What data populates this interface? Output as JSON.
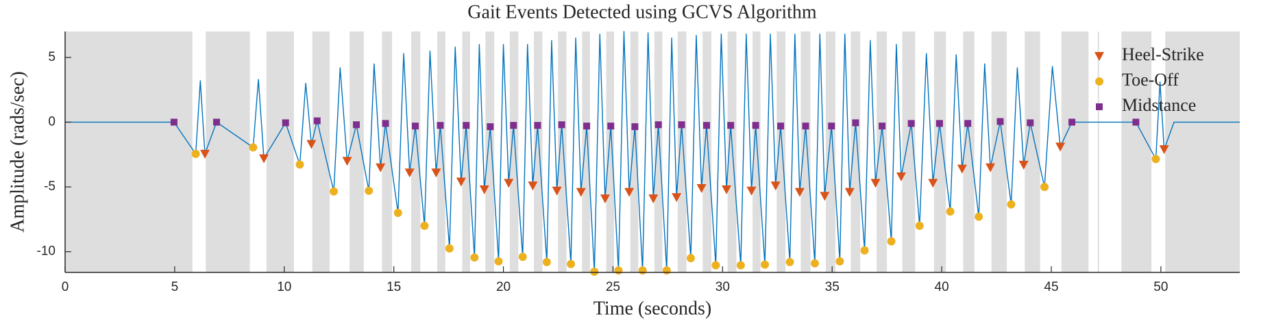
{
  "chart_data": {
    "type": "line",
    "title": "Gait Events Detected using GCVS Algorithm",
    "x_label": "Time (seconds)",
    "y_label": "Amplitude (rads/sec)",
    "xlim": [
      0,
      53.6
    ],
    "ylim": [
      -11.6,
      7
    ],
    "xticks": [
      0,
      5,
      10,
      15,
      20,
      25,
      30,
      35,
      40,
      45,
      50
    ],
    "yticks": [
      -10,
      -5,
      0,
      5
    ],
    "grid": false,
    "legend_position": "upper-right",
    "shade_color": "#dedede",
    "shaded_intervals": [
      [
        0,
        5.81
      ],
      [
        6.42,
        8.43
      ],
      [
        9.19,
        10.44
      ],
      [
        11.28,
        12.07
      ],
      [
        12.98,
        13.63
      ],
      [
        14.46,
        14.92
      ],
      [
        15.79,
        16.21
      ],
      [
        16.98,
        17.35
      ],
      [
        18.12,
        18.48
      ],
      [
        19.18,
        19.58
      ],
      [
        20.29,
        20.68
      ],
      [
        21.39,
        21.78
      ],
      [
        22.49,
        22.88
      ],
      [
        23.59,
        23.95
      ],
      [
        24.69,
        25.05
      ],
      [
        25.79,
        26.15
      ],
      [
        26.89,
        27.25
      ],
      [
        27.95,
        28.35
      ],
      [
        29.09,
        29.49
      ],
      [
        30.23,
        30.63
      ],
      [
        31.37,
        31.73
      ],
      [
        32.47,
        32.87
      ],
      [
        33.57,
        34.01
      ],
      [
        34.71,
        35.15
      ],
      [
        35.85,
        36.28
      ],
      [
        37.03,
        37.5
      ],
      [
        38.2,
        38.79
      ],
      [
        39.65,
        40.19
      ],
      [
        40.98,
        41.49
      ],
      [
        42.27,
        42.97
      ],
      [
        43.79,
        44.49
      ],
      [
        45.46,
        46.7
      ],
      [
        47.12,
        47.18
      ],
      [
        48.2,
        49.57
      ],
      [
        50.2,
        53.6
      ]
    ],
    "series": [
      {
        "type": "line",
        "color": "#0072BD",
        "x": [
          0,
          4.97,
          5.96,
          6.17,
          6.38,
          6.91,
          8.58,
          8.82,
          9.07,
          10.06,
          10.71,
          10.98,
          11.24,
          11.5,
          12.26,
          12.55,
          12.87,
          13.29,
          13.86,
          14.1,
          14.39,
          14.62,
          15.19,
          15.45,
          15.72,
          15.98,
          16.4,
          16.65,
          16.93,
          17.12,
          17.54,
          17.8,
          18.07,
          18.3,
          18.68,
          18.9,
          19.13,
          19.4,
          19.78,
          20.0,
          20.24,
          20.46,
          20.88,
          21.1,
          21.34,
          21.56,
          21.98,
          22.2,
          22.44,
          22.66,
          23.08,
          23.3,
          23.54,
          23.8,
          24.15,
          24.4,
          24.64,
          24.9,
          25.25,
          25.5,
          25.74,
          26.0,
          26.35,
          26.6,
          26.84,
          27.07,
          27.45,
          27.68,
          27.9,
          28.13,
          28.55,
          28.8,
          29.04,
          29.27,
          29.69,
          29.94,
          30.18,
          30.37,
          30.83,
          31.08,
          31.32,
          31.51,
          31.93,
          32.18,
          32.42,
          32.65,
          33.07,
          33.3,
          33.52,
          33.79,
          34.21,
          34.44,
          34.66,
          34.97,
          35.35,
          35.58,
          35.8,
          36.07,
          36.48,
          36.74,
          36.98,
          37.28,
          37.7,
          37.93,
          38.15,
          38.61,
          38.99,
          39.3,
          39.6,
          39.9,
          40.39,
          40.66,
          40.93,
          41.19,
          41.69,
          41.96,
          42.22,
          42.67,
          43.17,
          43.45,
          43.74,
          44.04,
          44.69,
          45.05,
          45.41,
          45.94,
          48.86,
          49.77,
          49.96,
          50.15,
          50.6,
          53.6
        ],
        "y": [
          0,
          0,
          -2.45,
          3.2,
          -2.45,
          0,
          -1.95,
          3.3,
          -2.8,
          -0.05,
          -3.27,
          3.0,
          -1.7,
          0.1,
          -5.35,
          4.2,
          -3.0,
          -0.2,
          -5.3,
          4.5,
          -3.5,
          -0.1,
          -7.0,
          5.3,
          -3.9,
          -0.3,
          -8.0,
          5.5,
          -3.9,
          -0.25,
          -9.75,
          5.8,
          -4.6,
          -0.25,
          -10.45,
          6.0,
          -5.2,
          -0.35,
          -10.75,
          6.0,
          -4.7,
          -0.25,
          -10.4,
          6.0,
          -4.9,
          -0.25,
          -10.8,
          6.3,
          -5.3,
          -0.2,
          -10.95,
          6.5,
          -5.4,
          -0.3,
          -11.55,
          6.8,
          -5.9,
          -0.3,
          -11.45,
          7.0,
          -5.4,
          -0.35,
          -11.45,
          6.9,
          -5.9,
          -0.2,
          -11.45,
          6.5,
          -5.8,
          -0.2,
          -10.5,
          6.7,
          -5.1,
          -0.25,
          -11.05,
          6.8,
          -5.2,
          -0.25,
          -11.05,
          6.8,
          -5.3,
          -0.25,
          -11.0,
          6.8,
          -4.9,
          -0.3,
          -10.8,
          6.8,
          -5.4,
          -0.3,
          -10.9,
          6.8,
          -5.7,
          -0.3,
          -10.75,
          6.8,
          -5.4,
          -0.05,
          -9.9,
          6.3,
          -4.7,
          -0.3,
          -9.2,
          6.0,
          -4.2,
          -0.1,
          -8.0,
          5.3,
          -4.7,
          -0.1,
          -6.9,
          5.2,
          -3.6,
          -0.1,
          -7.3,
          4.5,
          -3.5,
          0.05,
          -6.35,
          4.2,
          -3.3,
          -0.05,
          -5.0,
          4.3,
          -1.9,
          0,
          0,
          -2.85,
          3.1,
          -2.1,
          0,
          0
        ]
      },
      {
        "type": "scatter",
        "name": "Heel-Strike",
        "marker": "triangle-down",
        "color": "#D95319",
        "x": [
          6.38,
          9.07,
          11.24,
          12.87,
          14.39,
          15.72,
          16.93,
          18.07,
          19.13,
          20.24,
          21.34,
          22.44,
          23.54,
          24.64,
          25.74,
          26.84,
          27.9,
          29.04,
          30.18,
          31.32,
          32.42,
          33.52,
          34.66,
          35.8,
          36.98,
          38.15,
          39.6,
          40.93,
          42.22,
          43.74,
          45.41,
          50.15
        ],
        "y": [
          -2.45,
          -2.8,
          -1.7,
          -3.0,
          -3.5,
          -3.9,
          -3.9,
          -4.6,
          -5.2,
          -4.7,
          -4.9,
          -5.3,
          -5.4,
          -5.9,
          -5.4,
          -5.9,
          -5.8,
          -5.1,
          -5.2,
          -5.3,
          -4.9,
          -5.4,
          -5.7,
          -5.4,
          -4.7,
          -4.2,
          -4.7,
          -3.6,
          -3.5,
          -3.3,
          -1.9,
          -2.1
        ]
      },
      {
        "type": "scatter",
        "name": "Toe-Off",
        "marker": "circle",
        "color": "#EDB120",
        "x": [
          5.96,
          8.58,
          10.71,
          12.26,
          13.86,
          15.19,
          16.4,
          17.54,
          18.68,
          19.78,
          20.88,
          21.98,
          23.08,
          24.15,
          25.25,
          26.35,
          27.45,
          28.55,
          29.69,
          30.83,
          31.93,
          33.07,
          34.21,
          35.35,
          36.48,
          37.7,
          38.99,
          40.39,
          41.69,
          43.17,
          44.69,
          49.77
        ],
        "y": [
          -2.45,
          -1.95,
          -3.27,
          -5.35,
          -5.3,
          -7.0,
          -8.0,
          -9.75,
          -10.45,
          -10.75,
          -10.4,
          -10.8,
          -10.95,
          -11.55,
          -11.45,
          -11.45,
          -11.45,
          -10.5,
          -11.05,
          -11.05,
          -11.0,
          -10.8,
          -10.9,
          -10.75,
          -9.9,
          -9.2,
          -8.0,
          -6.9,
          -7.3,
          -6.35,
          -5.0,
          -2.85
        ]
      },
      {
        "type": "scatter",
        "name": "Midstance",
        "marker": "square",
        "color": "#7E2F8E",
        "x": [
          4.97,
          6.91,
          10.06,
          11.5,
          13.29,
          14.62,
          15.98,
          17.12,
          18.3,
          19.4,
          20.46,
          21.56,
          22.66,
          23.8,
          24.9,
          26.0,
          27.07,
          28.13,
          29.27,
          30.37,
          31.51,
          32.65,
          33.79,
          34.97,
          36.07,
          37.28,
          38.61,
          39.9,
          41.19,
          42.67,
          44.04,
          45.94,
          48.86
        ],
        "y": [
          0,
          0,
          -0.05,
          0.1,
          -0.2,
          -0.1,
          -0.3,
          -0.25,
          -0.25,
          -0.35,
          -0.25,
          -0.25,
          -0.2,
          -0.3,
          -0.3,
          -0.35,
          -0.2,
          -0.2,
          -0.25,
          -0.25,
          -0.25,
          -0.3,
          -0.3,
          -0.3,
          -0.05,
          -0.3,
          -0.1,
          -0.1,
          -0.1,
          0.05,
          -0.05,
          0,
          0
        ]
      }
    ]
  }
}
